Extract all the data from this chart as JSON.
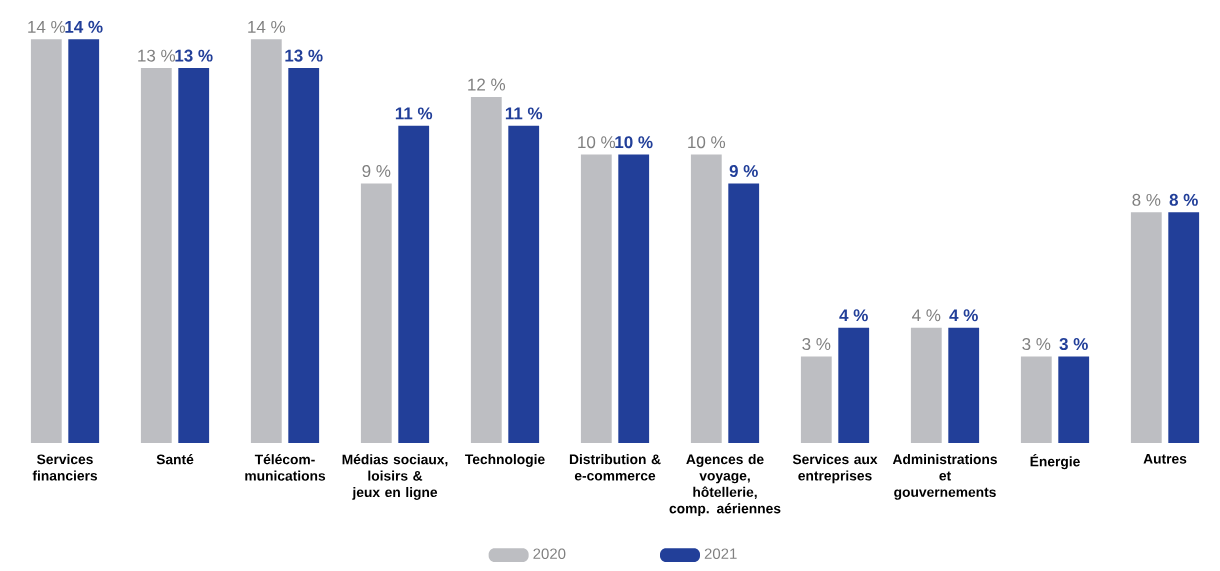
{
  "chart_data": {
    "type": "bar",
    "categories": [
      "Services financiers",
      "Santé",
      "Télécom-munications",
      "Médias sociaux, loisirs & jeux en ligne",
      "Technologie",
      "Distribution & e-commerce",
      "Agences de voyage, hôtellerie, comp. aériennes",
      "Services aux entreprises",
      "Administrations et gouvernements",
      "Énergie",
      "Autres"
    ],
    "series": [
      {
        "name": "2020",
        "color": "#bdbec2",
        "values": [
          14,
          13,
          14,
          9,
          12,
          10,
          10,
          3,
          4,
          3,
          8
        ],
        "value_labels": [
          "14 %",
          "13 %",
          "14 %",
          "9 %",
          "12 %",
          "10 %",
          "10 %",
          "3 %",
          "4 %",
          "3 %",
          "8 %"
        ]
      },
      {
        "name": "2021",
        "color": "#223f99",
        "values": [
          14,
          13,
          13,
          11,
          11,
          10,
          9,
          4,
          4,
          3,
          8
        ],
        "value_labels": [
          "14 %",
          "13 %",
          "13 %",
          "11 %",
          "11 %",
          "10 %",
          "9 %",
          "4 %",
          "4 %",
          "3 %",
          "8 %"
        ]
      }
    ],
    "legend": "bottom"
  }
}
